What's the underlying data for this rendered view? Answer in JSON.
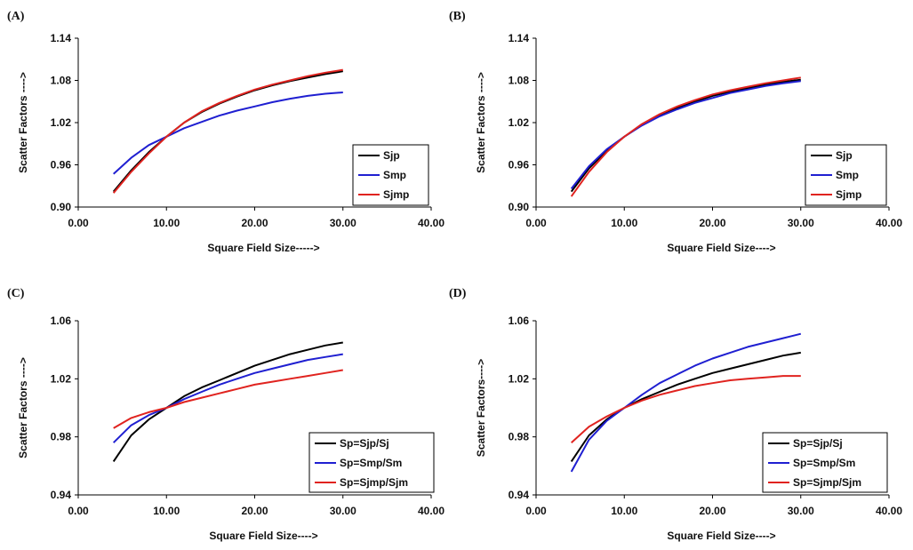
{
  "colors": {
    "Sjp": "#000000",
    "Smp": "#1f1fd1",
    "Sjmp": "#e0231f",
    "Sp=Sjp/Sj": "#000000",
    "Sp=Smp/Sm": "#1f1fd1",
    "Sp=Sjmp/Sjm": "#e0231f"
  },
  "chart_data": [
    {
      "label": "(A)",
      "type": "line",
      "xlabel": "Square Field Size----->",
      "ylabel": "Scatter Factors ---->",
      "xlim": [
        0,
        40
      ],
      "ylim": [
        0.9,
        1.14
      ],
      "x_ticks": [
        "0.00",
        "10.00",
        "20.00",
        "30.00",
        "40.00"
      ],
      "y_ticks": [
        "0.90",
        "0.96",
        "1.02",
        "1.08",
        "1.14"
      ],
      "legend": "right",
      "x": [
        4,
        6,
        8,
        10,
        12,
        14,
        16,
        18,
        20,
        22,
        24,
        26,
        28,
        30
      ],
      "series": [
        {
          "name": "Sjp",
          "values": [
            0.922,
            0.952,
            0.978,
            1.0,
            1.02,
            1.035,
            1.047,
            1.057,
            1.066,
            1.073,
            1.079,
            1.084,
            1.089,
            1.093
          ]
        },
        {
          "name": "Smp",
          "values": [
            0.947,
            0.97,
            0.988,
            1.0,
            1.012,
            1.021,
            1.03,
            1.037,
            1.043,
            1.049,
            1.054,
            1.058,
            1.061,
            1.063
          ]
        },
        {
          "name": "Sjmp",
          "values": [
            0.92,
            0.95,
            0.976,
            1.0,
            1.02,
            1.036,
            1.048,
            1.058,
            1.067,
            1.074,
            1.08,
            1.086,
            1.091,
            1.095
          ]
        }
      ]
    },
    {
      "label": "(B)",
      "type": "line",
      "xlabel": "Square Field Size---->",
      "ylabel": "Scatter Factors ---->",
      "xlim": [
        0,
        40
      ],
      "ylim": [
        0.9,
        1.14
      ],
      "x_ticks": [
        "0.00",
        "10.00",
        "20.00",
        "30.00",
        "40.00"
      ],
      "y_ticks": [
        "0.90",
        "0.96",
        "1.02",
        "1.08",
        "1.14"
      ],
      "legend": "right",
      "x": [
        4,
        6,
        8,
        10,
        12,
        14,
        16,
        18,
        20,
        22,
        24,
        26,
        28,
        30
      ],
      "series": [
        {
          "name": "Sjp",
          "values": [
            0.922,
            0.955,
            0.98,
            1.0,
            1.017,
            1.03,
            1.041,
            1.05,
            1.058,
            1.064,
            1.069,
            1.074,
            1.078,
            1.081
          ]
        },
        {
          "name": "Smp",
          "values": [
            0.926,
            0.958,
            0.982,
            1.0,
            1.016,
            1.029,
            1.039,
            1.048,
            1.055,
            1.062,
            1.067,
            1.072,
            1.076,
            1.079
          ]
        },
        {
          "name": "Sjmp",
          "values": [
            0.915,
            0.95,
            0.978,
            1.0,
            1.018,
            1.032,
            1.043,
            1.052,
            1.06,
            1.066,
            1.071,
            1.076,
            1.08,
            1.084
          ]
        }
      ]
    },
    {
      "label": "(C)",
      "type": "line",
      "xlabel": "Square Field Size---->",
      "ylabel": "Scatter Factors ---->",
      "xlim": [
        0,
        40
      ],
      "ylim": [
        0.94,
        1.06
      ],
      "x_ticks": [
        "0.00",
        "10.00",
        "20.00",
        "30.00",
        "40.00"
      ],
      "y_ticks": [
        "0.94",
        "0.98",
        "1.02",
        "1.06"
      ],
      "legend": "bottom-right",
      "x": [
        4,
        6,
        8,
        10,
        12,
        14,
        16,
        18,
        20,
        22,
        24,
        26,
        28,
        30
      ],
      "series": [
        {
          "name": "Sp=Sjp/Sj",
          "values": [
            0.963,
            0.981,
            0.992,
            1.0,
            1.008,
            1.014,
            1.019,
            1.024,
            1.029,
            1.033,
            1.037,
            1.04,
            1.043,
            1.045
          ]
        },
        {
          "name": "Sp=Smp/Sm",
          "values": [
            0.976,
            0.988,
            0.995,
            1.0,
            1.006,
            1.011,
            1.016,
            1.02,
            1.024,
            1.027,
            1.03,
            1.033,
            1.035,
            1.037
          ]
        },
        {
          "name": "Sp=Sjmp/Sjm",
          "values": [
            0.986,
            0.993,
            0.997,
            1.0,
            1.004,
            1.007,
            1.01,
            1.013,
            1.016,
            1.018,
            1.02,
            1.022,
            1.024,
            1.026
          ]
        }
      ]
    },
    {
      "label": "(D)",
      "type": "line",
      "xlabel": "Square Field Size---->",
      "ylabel": "Scatter Factors---->",
      "xlim": [
        0,
        40
      ],
      "ylim": [
        0.94,
        1.06
      ],
      "x_ticks": [
        "0.00",
        "10.00",
        "20.00",
        "30.00",
        "40.00"
      ],
      "y_ticks": [
        "0.94",
        "0.98",
        "1.02",
        "1.06"
      ],
      "legend": "bottom-right",
      "x": [
        4,
        6,
        8,
        10,
        12,
        14,
        16,
        18,
        20,
        22,
        24,
        26,
        28,
        30
      ],
      "series": [
        {
          "name": "Sp=Sjp/Sj",
          "values": [
            0.963,
            0.981,
            0.992,
            1.0,
            1.006,
            1.011,
            1.016,
            1.02,
            1.024,
            1.027,
            1.03,
            1.033,
            1.036,
            1.038
          ]
        },
        {
          "name": "Sp=Smp/Sm",
          "values": [
            0.956,
            0.978,
            0.991,
            1.0,
            1.009,
            1.017,
            1.023,
            1.029,
            1.034,
            1.038,
            1.042,
            1.045,
            1.048,
            1.051
          ]
        },
        {
          "name": "Sp=Sjmp/Sjm",
          "values": [
            0.976,
            0.987,
            0.994,
            1.0,
            1.005,
            1.009,
            1.012,
            1.015,
            1.017,
            1.019,
            1.02,
            1.021,
            1.022,
            1.022
          ]
        }
      ]
    }
  ]
}
